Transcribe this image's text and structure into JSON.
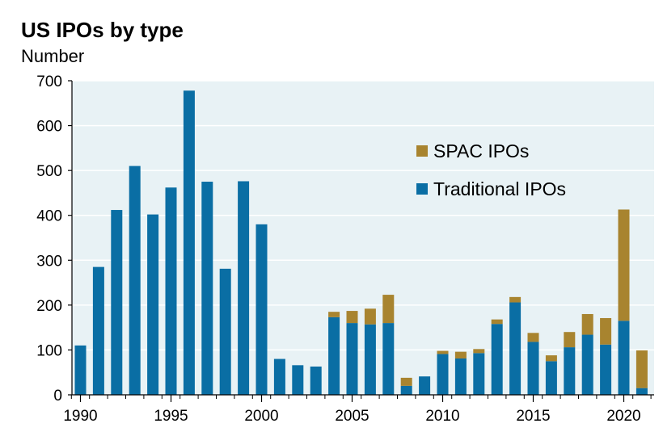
{
  "title": "US IPOs by type",
  "subtitle": "Number",
  "colors": {
    "traditional": "#0a6ea4",
    "spac": "#a8842f",
    "plot_bg": "#e8f2f5",
    "grid": "#ffffff"
  },
  "chart_data": {
    "type": "bar",
    "stacked": true,
    "title": "US IPOs by type",
    "ylabel": "Number",
    "ylim": [
      0,
      700
    ],
    "yticks": [
      0,
      100,
      200,
      300,
      400,
      500,
      600,
      700
    ],
    "xtick_labels": [
      "1990",
      "1995",
      "2000",
      "2005",
      "2010",
      "2015",
      "2020"
    ],
    "categories": [
      "1990",
      "1991",
      "1992",
      "1993",
      "1994",
      "1995",
      "1996",
      "1997",
      "1998",
      "1999",
      "2000",
      "2001",
      "2002",
      "2003",
      "2004",
      "2005",
      "2006",
      "2007",
      "2008",
      "2009",
      "2010",
      "2011",
      "2012",
      "2013",
      "2014",
      "2015",
      "2016",
      "2017",
      "2018",
      "2019",
      "2020",
      "2021"
    ],
    "series": [
      {
        "name": "Traditional IPOs",
        "color_key": "traditional",
        "values": [
          110,
          285,
          412,
          510,
          402,
          462,
          678,
          475,
          281,
          476,
          380,
          80,
          66,
          63,
          173,
          160,
          157,
          160,
          20,
          41,
          91,
          81,
          93,
          158,
          206,
          118,
          75,
          106,
          134,
          112,
          165,
          15
        ]
      },
      {
        "name": "SPAC IPOs",
        "color_key": "spac",
        "values": [
          0,
          0,
          0,
          0,
          0,
          0,
          0,
          0,
          0,
          0,
          0,
          0,
          0,
          0,
          12,
          27,
          35,
          63,
          18,
          0,
          7,
          15,
          9,
          10,
          12,
          20,
          13,
          34,
          46,
          59,
          248,
          84
        ]
      }
    ],
    "legend": {
      "placement": "top-right",
      "entries": [
        "SPAC IPOs",
        "Traditional IPOs"
      ]
    },
    "grid": true
  }
}
